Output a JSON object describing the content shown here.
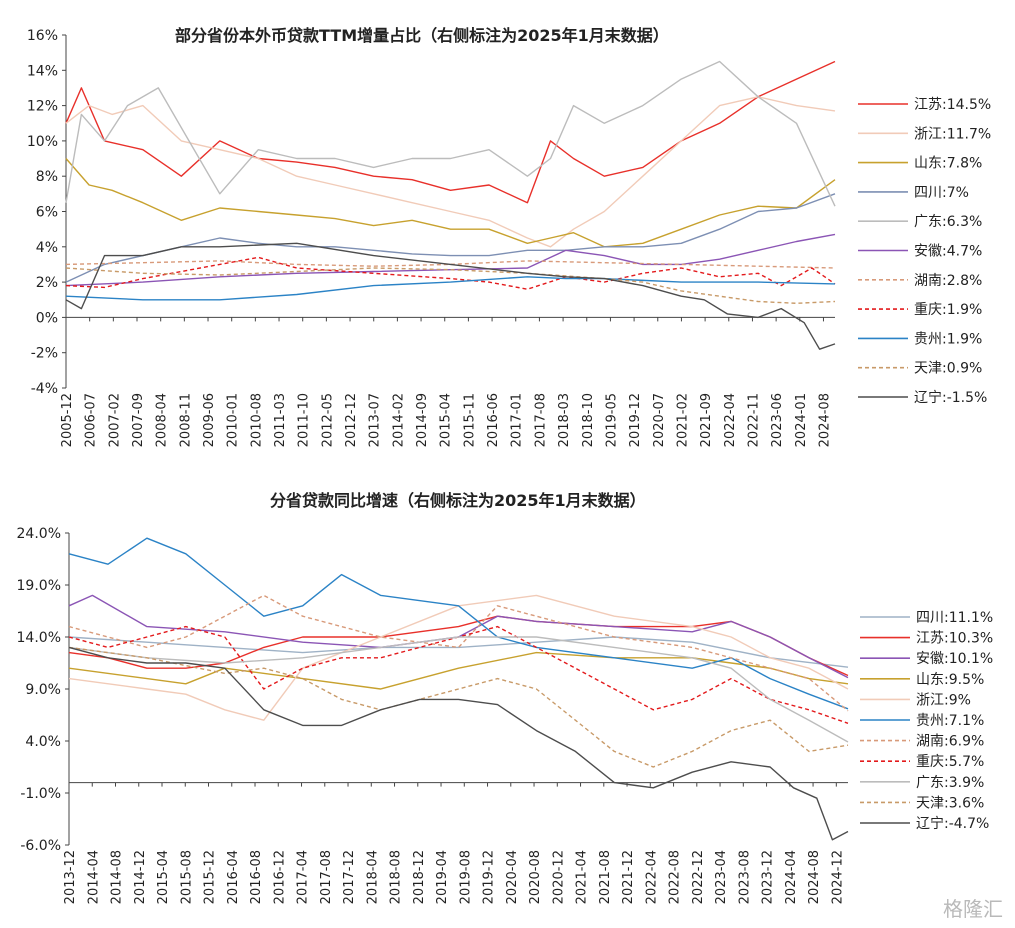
{
  "watermark": "格隆汇",
  "chart_data": [
    {
      "type": "line",
      "title": "部分省份本外币贷款TTM增量占比（右侧标注为2025年1月末数据）",
      "xlabel": "",
      "ylabel": "",
      "ylim": [
        -4,
        16
      ],
      "yticks": [
        "-4%",
        "-2%",
        "0%",
        "2%",
        "4%",
        "6%",
        "8%",
        "10%",
        "12%",
        "14%",
        "16%"
      ],
      "x_start": "2005-12",
      "x_end": "2025-01",
      "xticks": [
        "2005-12",
        "2006-07",
        "2007-02",
        "2007-09",
        "2008-04",
        "2008-11",
        "2009-06",
        "2010-01",
        "2010-08",
        "2011-03",
        "2011-10",
        "2012-05",
        "2012-12",
        "2013-07",
        "2014-02",
        "2014-09",
        "2015-04",
        "2015-11",
        "2016-06",
        "2017-01",
        "2017-08",
        "2018-03",
        "2018-10",
        "2019-05",
        "2019-12",
        "2020-07",
        "2021-02",
        "2021-09",
        "2022-04",
        "2022-11",
        "2023-06",
        "2024-01",
        "2024-08"
      ],
      "series": [
        {
          "name": "江苏",
          "label": "江苏:14.5%",
          "color": "#e8302a",
          "dash": "solid",
          "t": [
            0,
            0.02,
            0.05,
            0.1,
            0.15,
            0.2,
            0.25,
            0.3,
            0.35,
            0.4,
            0.45,
            0.5,
            0.55,
            0.6,
            0.63,
            0.66,
            0.7,
            0.75,
            0.8,
            0.85,
            0.9,
            0.95,
            1.0
          ],
          "v": [
            11,
            13,
            10,
            9.5,
            8,
            10,
            9,
            8.8,
            8.5,
            8,
            7.8,
            7.2,
            7.5,
            6.5,
            10,
            9,
            8,
            8.5,
            10,
            11,
            12.5,
            13.5,
            14.5
          ]
        },
        {
          "name": "浙江",
          "label": "浙江:11.7%",
          "color": "#f1cbb8",
          "dash": "solid",
          "t": [
            0,
            0.03,
            0.06,
            0.1,
            0.15,
            0.2,
            0.25,
            0.3,
            0.35,
            0.4,
            0.45,
            0.5,
            0.55,
            0.6,
            0.63,
            0.66,
            0.7,
            0.75,
            0.8,
            0.85,
            0.9,
            0.95,
            1.0
          ],
          "v": [
            11,
            12,
            11.5,
            12,
            10,
            9.5,
            9,
            8,
            7.5,
            7,
            6.5,
            6,
            5.5,
            4.5,
            4,
            5,
            6,
            8,
            10,
            12,
            12.5,
            12,
            11.7
          ]
        },
        {
          "name": "山东",
          "label": "山东:7.8%",
          "color": "#c7a12e",
          "dash": "solid",
          "t": [
            0,
            0.03,
            0.06,
            0.1,
            0.15,
            0.2,
            0.25,
            0.3,
            0.35,
            0.4,
            0.45,
            0.5,
            0.55,
            0.6,
            0.63,
            0.66,
            0.7,
            0.75,
            0.8,
            0.85,
            0.9,
            0.95,
            1.0
          ],
          "v": [
            9,
            7.5,
            7.2,
            6.5,
            5.5,
            6.2,
            6,
            5.8,
            5.6,
            5.2,
            5.5,
            5,
            5,
            4.2,
            4.5,
            4.8,
            4,
            4.2,
            5,
            5.8,
            6.3,
            6.2,
            7.8
          ]
        },
        {
          "name": "四川",
          "label": "四川:7%",
          "color": "#7d8fb3",
          "dash": "solid",
          "t": [
            0,
            0.05,
            0.1,
            0.15,
            0.2,
            0.25,
            0.3,
            0.35,
            0.4,
            0.45,
            0.5,
            0.55,
            0.6,
            0.65,
            0.7,
            0.75,
            0.8,
            0.85,
            0.9,
            0.95,
            1.0
          ],
          "v": [
            2,
            3,
            3.5,
            4,
            4.5,
            4.2,
            4,
            4,
            3.8,
            3.6,
            3.5,
            3.5,
            3.8,
            3.8,
            4,
            4,
            4.2,
            5,
            6,
            6.2,
            7
          ]
        },
        {
          "name": "广东",
          "label": "广东:6.3%",
          "color": "#bcbcbc",
          "dash": "solid",
          "t": [
            0,
            0.02,
            0.05,
            0.08,
            0.12,
            0.16,
            0.2,
            0.25,
            0.3,
            0.35,
            0.4,
            0.45,
            0.5,
            0.55,
            0.6,
            0.63,
            0.66,
            0.7,
            0.75,
            0.8,
            0.85,
            0.9,
            0.95,
            1.0
          ],
          "v": [
            6.5,
            11.5,
            10,
            12,
            13,
            10,
            7,
            9.5,
            9,
            9,
            8.5,
            9,
            9,
            9.5,
            8,
            9,
            12,
            11,
            12,
            13.5,
            14.5,
            12.5,
            11,
            6.3
          ]
        },
        {
          "name": "安徽",
          "label": "安徽:4.7%",
          "color": "#8b55b5",
          "dash": "solid",
          "t": [
            0,
            0.1,
            0.2,
            0.3,
            0.4,
            0.5,
            0.6,
            0.65,
            0.7,
            0.75,
            0.8,
            0.85,
            0.9,
            0.95,
            1.0
          ],
          "v": [
            1.8,
            2,
            2.3,
            2.5,
            2.6,
            2.7,
            2.8,
            3.8,
            3.5,
            3,
            3,
            3.3,
            3.8,
            4.3,
            4.7
          ]
        },
        {
          "name": "湖南",
          "label": "湖南:2.8%",
          "color": "#d89a7a",
          "dash": "dashed",
          "t": [
            0,
            0.1,
            0.2,
            0.3,
            0.4,
            0.5,
            0.6,
            0.7,
            0.8,
            0.9,
            1.0
          ],
          "v": [
            3,
            3.1,
            3.2,
            3,
            2.9,
            3,
            3.2,
            3.1,
            3,
            2.9,
            2.8
          ]
        },
        {
          "name": "重庆",
          "label": "重庆:1.9%",
          "color": "#e31a1c",
          "dash": "dashed",
          "t": [
            0,
            0.05,
            0.1,
            0.2,
            0.25,
            0.3,
            0.4,
            0.5,
            0.55,
            0.6,
            0.65,
            0.7,
            0.75,
            0.8,
            0.85,
            0.9,
            0.93,
            0.97,
            1.0
          ],
          "v": [
            1.8,
            1.7,
            2.2,
            3,
            3.4,
            2.8,
            2.5,
            2.2,
            2,
            1.6,
            2.3,
            2,
            2.5,
            2.8,
            2.3,
            2.5,
            1.8,
            2.8,
            1.9
          ]
        },
        {
          "name": "贵州",
          "label": "贵州:1.9%",
          "color": "#2b83c6",
          "dash": "solid",
          "t": [
            0,
            0.1,
            0.2,
            0.3,
            0.4,
            0.5,
            0.6,
            0.65,
            0.7,
            0.8,
            0.9,
            1.0
          ],
          "v": [
            1.2,
            1,
            1,
            1.3,
            1.8,
            2,
            2.3,
            2.2,
            2.2,
            2,
            2,
            1.9
          ]
        },
        {
          "name": "天津",
          "label": "天津:0.9%",
          "color": "#c89a68",
          "dash": "dashed",
          "t": [
            0,
            0.1,
            0.2,
            0.3,
            0.4,
            0.5,
            0.6,
            0.7,
            0.75,
            0.8,
            0.85,
            0.9,
            0.95,
            1.0
          ],
          "v": [
            2.8,
            2.5,
            2.4,
            2.6,
            2.8,
            2.7,
            2.5,
            2.2,
            2,
            1.5,
            1.2,
            0.9,
            0.8,
            0.9
          ]
        },
        {
          "name": "辽宁",
          "label": "辽宁:-1.5%",
          "color": "#4d4d4d",
          "dash": "solid",
          "t": [
            0,
            0.02,
            0.05,
            0.1,
            0.15,
            0.2,
            0.3,
            0.4,
            0.5,
            0.6,
            0.65,
            0.7,
            0.75,
            0.8,
            0.83,
            0.86,
            0.9,
            0.93,
            0.96,
            0.98,
            1.0
          ],
          "v": [
            1,
            0.5,
            3.5,
            3.5,
            4,
            4,
            4.2,
            3.5,
            3,
            2.5,
            2.3,
            2.2,
            1.8,
            1.2,
            1,
            0.2,
            0,
            0.5,
            -0.3,
            -1.8,
            -1.5
          ]
        }
      ]
    },
    {
      "type": "line",
      "title": "分省贷款同比增速（右侧标注为2025年1月末数据）",
      "xlabel": "",
      "ylabel": "",
      "ylim": [
        -6,
        24
      ],
      "yticks": [
        "-6.0%",
        "-1.0%",
        "4.0%",
        "9.0%",
        "14.0%",
        "19.0%",
        "24.0%"
      ],
      "x_start": "2013-12",
      "x_end": "2025-01",
      "xticks": [
        "2013-12",
        "2014-04",
        "2014-08",
        "2014-12",
        "2015-04",
        "2015-08",
        "2015-12",
        "2016-04",
        "2016-08",
        "2016-12",
        "2017-04",
        "2017-08",
        "2017-12",
        "2018-04",
        "2018-08",
        "2018-12",
        "2019-04",
        "2019-08",
        "2019-12",
        "2020-04",
        "2020-08",
        "2020-12",
        "2021-04",
        "2021-08",
        "2021-12",
        "2022-04",
        "2022-08",
        "2022-12",
        "2023-04",
        "2023-08",
        "2023-12",
        "2024-04",
        "2024-08",
        "2024-12"
      ],
      "series": [
        {
          "name": "四川",
          "label": "四川:11.1%",
          "color": "#9fb2c6",
          "dash": "solid",
          "t": [
            0,
            0.1,
            0.2,
            0.3,
            0.4,
            0.5,
            0.6,
            0.7,
            0.8,
            0.9,
            1.0
          ],
          "v": [
            14,
            13.5,
            13,
            12.5,
            13,
            13,
            13.5,
            14,
            13.5,
            12,
            11.1
          ]
        },
        {
          "name": "江苏",
          "label": "江苏:10.3%",
          "color": "#e8302a",
          "dash": "solid",
          "t": [
            0,
            0.05,
            0.1,
            0.15,
            0.2,
            0.25,
            0.3,
            0.4,
            0.5,
            0.55,
            0.6,
            0.7,
            0.8,
            0.85,
            0.9,
            0.95,
            1.0
          ],
          "v": [
            12.5,
            12,
            11,
            11,
            11.5,
            13,
            14,
            14,
            15,
            16,
            15.5,
            15,
            15,
            15.5,
            14,
            12,
            10.3
          ]
        },
        {
          "name": "安徽",
          "label": "安徽:10.1%",
          "color": "#8b55b5",
          "dash": "solid",
          "t": [
            0,
            0.03,
            0.1,
            0.2,
            0.3,
            0.4,
            0.5,
            0.55,
            0.6,
            0.7,
            0.8,
            0.85,
            0.9,
            0.95,
            1.0
          ],
          "v": [
            17,
            18,
            15,
            14.5,
            13.5,
            13,
            14,
            16,
            15.5,
            15,
            14.5,
            15.5,
            14,
            12,
            10.1
          ]
        },
        {
          "name": "山东",
          "label": "山东:9.5%",
          "color": "#c7a12e",
          "dash": "solid",
          "t": [
            0,
            0.1,
            0.15,
            0.2,
            0.3,
            0.4,
            0.5,
            0.6,
            0.7,
            0.8,
            0.85,
            0.9,
            0.95,
            1.0
          ],
          "v": [
            11,
            10,
            9.5,
            11,
            10,
            9,
            11,
            12.5,
            12,
            12,
            11.5,
            11,
            10,
            9.5
          ]
        },
        {
          "name": "浙江",
          "label": "浙江:9%",
          "color": "#f1cbb8",
          "dash": "solid",
          "t": [
            0,
            0.1,
            0.15,
            0.2,
            0.25,
            0.3,
            0.4,
            0.5,
            0.6,
            0.7,
            0.8,
            0.85,
            0.9,
            0.95,
            1.0
          ],
          "v": [
            10,
            9,
            8.5,
            7,
            6,
            11,
            14,
            17,
            18,
            16,
            15,
            14,
            12,
            11,
            9
          ]
        },
        {
          "name": "贵州",
          "label": "贵州:7.1%",
          "color": "#2b83c6",
          "dash": "solid",
          "t": [
            0,
            0.05,
            0.1,
            0.15,
            0.2,
            0.25,
            0.3,
            0.35,
            0.4,
            0.5,
            0.55,
            0.6,
            0.7,
            0.8,
            0.85,
            0.9,
            0.95,
            1.0
          ],
          "v": [
            22,
            21,
            23.5,
            22,
            19,
            16,
            17,
            20,
            18,
            17,
            14,
            13,
            12,
            11,
            12,
            10,
            8.5,
            7.1
          ]
        },
        {
          "name": "湖南",
          "label": "湖南:6.9%",
          "color": "#d89a7a",
          "dash": "dashed",
          "t": [
            0,
            0.05,
            0.1,
            0.15,
            0.2,
            0.25,
            0.3,
            0.4,
            0.5,
            0.55,
            0.6,
            0.7,
            0.8,
            0.85,
            0.9,
            0.95,
            1.0
          ],
          "v": [
            15,
            14,
            13,
            14,
            16,
            18,
            16,
            14,
            13,
            17,
            16,
            14,
            13,
            12,
            11,
            10,
            6.9
          ]
        },
        {
          "name": "重庆",
          "label": "重庆:5.7%",
          "color": "#e31a1c",
          "dash": "dashed",
          "t": [
            0,
            0.05,
            0.1,
            0.15,
            0.2,
            0.25,
            0.3,
            0.35,
            0.4,
            0.5,
            0.55,
            0.6,
            0.65,
            0.7,
            0.75,
            0.8,
            0.85,
            0.9,
            0.95,
            1.0
          ],
          "v": [
            14,
            13,
            14,
            15,
            14,
            9,
            11,
            12,
            12,
            14,
            15,
            13,
            11,
            9,
            7,
            8,
            10,
            8,
            7,
            5.7
          ]
        },
        {
          "name": "广东",
          "label": "广东:3.9%",
          "color": "#bcbcbc",
          "dash": "solid",
          "t": [
            0,
            0.1,
            0.2,
            0.3,
            0.4,
            0.5,
            0.6,
            0.7,
            0.8,
            0.85,
            0.9,
            0.95,
            1.0
          ],
          "v": [
            13,
            12,
            11.5,
            12,
            13,
            14,
            14,
            13,
            12,
            11,
            8,
            6,
            3.9
          ]
        },
        {
          "name": "天津",
          "label": "天津:3.6%",
          "color": "#c89a68",
          "dash": "dashed",
          "t": [
            0,
            0.1,
            0.2,
            0.25,
            0.3,
            0.35,
            0.4,
            0.5,
            0.55,
            0.6,
            0.65,
            0.7,
            0.75,
            0.8,
            0.85,
            0.9,
            0.95,
            1.0
          ],
          "v": [
            13,
            12,
            10.5,
            11,
            10,
            8,
            7,
            9,
            10,
            9,
            6,
            3,
            1.5,
            3,
            5,
            6,
            3,
            3.6
          ]
        },
        {
          "name": "辽宁",
          "label": "辽宁:-4.7%",
          "color": "#4d4d4d",
          "dash": "solid",
          "t": [
            0,
            0.05,
            0.1,
            0.15,
            0.2,
            0.25,
            0.3,
            0.35,
            0.4,
            0.45,
            0.5,
            0.55,
            0.6,
            0.65,
            0.7,
            0.75,
            0.8,
            0.85,
            0.9,
            0.93,
            0.96,
            0.98,
            1.0
          ],
          "v": [
            13,
            12,
            11.5,
            11.5,
            11,
            7,
            5.5,
            5.5,
            7,
            8,
            8,
            7.5,
            5,
            3,
            0,
            -0.5,
            1,
            2,
            1.5,
            -0.5,
            -1.5,
            -5.5,
            -4.7
          ]
        }
      ]
    }
  ]
}
